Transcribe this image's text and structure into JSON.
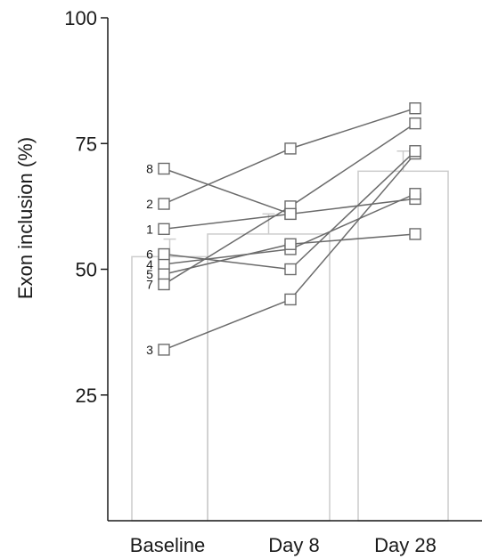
{
  "chart_data": {
    "type": "bar",
    "categories": [
      "Baseline",
      "Day 8",
      "Day 28"
    ],
    "bars": [
      {
        "category": "Baseline",
        "mean": 52.5,
        "error": 3.5
      },
      {
        "category": "Day 8",
        "mean": 57,
        "error": 4
      },
      {
        "category": "Day 28",
        "mean": 69.5,
        "error": 4
      }
    ],
    "subjects": [
      {
        "id": "1",
        "values": [
          58,
          61,
          64
        ]
      },
      {
        "id": "2",
        "values": [
          63,
          74,
          82
        ]
      },
      {
        "id": "3",
        "values": [
          34,
          44,
          73
        ]
      },
      {
        "id": "4",
        "values": [
          51,
          54,
          65
        ]
      },
      {
        "id": "5",
        "values": [
          49,
          55,
          57
        ]
      },
      {
        "id": "6",
        "values": [
          53,
          50,
          73.5
        ]
      },
      {
        "id": "7",
        "values": [
          47,
          62.5,
          79
        ]
      },
      {
        "id": "8",
        "values": [
          70,
          61,
          null
        ]
      }
    ],
    "ylabel": "Exon inclusion (%)",
    "xlabel": "",
    "yticks": [
      25,
      50,
      75,
      100
    ],
    "ylim": [
      0,
      100
    ],
    "grid": false,
    "colors": {
      "bar_stroke": "#cccccc",
      "line": "#6b6b6b",
      "marker_stroke": "#6b6b6b",
      "axis": "#1a1a1a"
    }
  }
}
